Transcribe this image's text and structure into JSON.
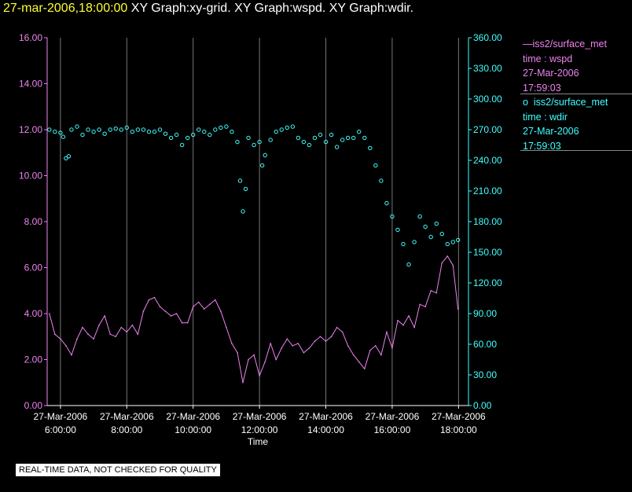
{
  "header": {
    "time_label": "27-mar-2006,18:00:00",
    "title_rest": "XY Graph:xy-grid.  XY Graph:wspd.  XY Graph:wdir."
  },
  "legend": {
    "wspd": {
      "marker": "—",
      "source": "iss2/surface_met",
      "var": "time : wspd",
      "date": "27-Mar-2006",
      "time": "17:59:03"
    },
    "wdir": {
      "marker": "o",
      "source": "iss2/surface_met",
      "var": "time : wdir",
      "date": "27-Mar-2006",
      "time": "17:59:03"
    }
  },
  "footer": {
    "disclaimer": "REAL-TIME DATA, NOT CHECKED FOR QUALITY"
  },
  "chart_data": {
    "type": "line",
    "xlabel": "Time",
    "x_range_hours": [
      5.6,
      18.3
    ],
    "x_ticks": [
      {
        "date": "27-Mar-2006",
        "time": "6:00:00",
        "hour": 6
      },
      {
        "date": "27-Mar-2006",
        "time": "8:00:00",
        "hour": 8
      },
      {
        "date": "27-Mar-2006",
        "time": "10:00:00",
        "hour": 10
      },
      {
        "date": "27-Mar-2006",
        "time": "12:00:00",
        "hour": 12
      },
      {
        "date": "27-Mar-2006",
        "time": "14:00:00",
        "hour": 14
      },
      {
        "date": "27-Mar-2006",
        "time": "16:00:00",
        "hour": 16
      },
      {
        "date": "27-Mar-2006",
        "time": "18:00:00",
        "hour": 18
      }
    ],
    "left_axis": {
      "ylim": [
        0,
        16
      ],
      "ticks": [
        "0.00",
        "2.00",
        "4.00",
        "6.00",
        "8.00",
        "10.00",
        "12.00",
        "14.00",
        "16.00"
      ]
    },
    "right_axis": {
      "ylim": [
        0,
        360
      ],
      "ticks": [
        "0.00",
        "30.00",
        "60.00",
        "90.00",
        "120.00",
        "150.00",
        "180.00",
        "210.00",
        "240.00",
        "270.00",
        "300.00",
        "330.00",
        "360.00"
      ]
    },
    "series": [
      {
        "name": "iss2/surface_met time : wspd",
        "style": "line",
        "axis": "left",
        "color": "#ee82ee",
        "points": [
          [
            "5:40",
            4.0
          ],
          [
            "5:50",
            3.1
          ],
          [
            "6:00",
            2.9
          ],
          [
            "6:10",
            2.6
          ],
          [
            "6:20",
            2.2
          ],
          [
            "6:30",
            2.9
          ],
          [
            "6:40",
            3.4
          ],
          [
            "6:50",
            3.1
          ],
          [
            "7:00",
            2.9
          ],
          [
            "7:10",
            3.5
          ],
          [
            "7:20",
            3.9
          ],
          [
            "7:30",
            3.1
          ],
          [
            "7:40",
            3.0
          ],
          [
            "7:50",
            3.4
          ],
          [
            "8:00",
            3.2
          ],
          [
            "8:10",
            3.5
          ],
          [
            "8:20",
            3.1
          ],
          [
            "8:30",
            4.1
          ],
          [
            "8:40",
            4.6
          ],
          [
            "8:50",
            4.7
          ],
          [
            "9:00",
            4.3
          ],
          [
            "9:10",
            4.1
          ],
          [
            "9:20",
            3.9
          ],
          [
            "9:30",
            4.0
          ],
          [
            "9:40",
            3.6
          ],
          [
            "9:50",
            3.6
          ],
          [
            "10:00",
            4.3
          ],
          [
            "10:10",
            4.5
          ],
          [
            "10:20",
            4.2
          ],
          [
            "10:30",
            4.4
          ],
          [
            "10:40",
            4.6
          ],
          [
            "10:50",
            4.1
          ],
          [
            "11:00",
            3.4
          ],
          [
            "11:10",
            2.7
          ],
          [
            "11:20",
            2.3
          ],
          [
            "11:30",
            1.0
          ],
          [
            "11:40",
            2.0
          ],
          [
            "11:50",
            2.2
          ],
          [
            "12:00",
            1.3
          ],
          [
            "12:10",
            1.9
          ],
          [
            "12:20",
            2.7
          ],
          [
            "12:30",
            2.0
          ],
          [
            "12:40",
            2.5
          ],
          [
            "12:50",
            2.9
          ],
          [
            "13:00",
            2.6
          ],
          [
            "13:10",
            2.7
          ],
          [
            "13:20",
            2.3
          ],
          [
            "13:30",
            2.5
          ],
          [
            "13:40",
            2.8
          ],
          [
            "13:50",
            3.0
          ],
          [
            "14:00",
            2.8
          ],
          [
            "14:10",
            3.0
          ],
          [
            "14:20",
            3.4
          ],
          [
            "14:30",
            3.2
          ],
          [
            "14:40",
            2.6
          ],
          [
            "14:50",
            2.2
          ],
          [
            "15:00",
            1.9
          ],
          [
            "15:10",
            1.6
          ],
          [
            "15:20",
            2.4
          ],
          [
            "15:30",
            2.6
          ],
          [
            "15:40",
            2.2
          ],
          [
            "15:50",
            3.2
          ],
          [
            "16:00",
            2.5
          ],
          [
            "16:10",
            3.7
          ],
          [
            "16:20",
            3.5
          ],
          [
            "16:30",
            3.9
          ],
          [
            "16:40",
            3.4
          ],
          [
            "16:50",
            4.4
          ],
          [
            "17:00",
            4.3
          ],
          [
            "17:10",
            5.0
          ],
          [
            "17:20",
            4.9
          ],
          [
            "17:30",
            6.2
          ],
          [
            "17:40",
            6.5
          ],
          [
            "17:50",
            6.1
          ],
          [
            "17:59",
            4.2
          ]
        ]
      },
      {
        "name": "iss2/surface_met time : wdir",
        "style": "points",
        "axis": "right",
        "color": "#40ffff",
        "points": [
          [
            "5:40",
            270
          ],
          [
            "5:50",
            268
          ],
          [
            "6:00",
            267
          ],
          [
            "6:05",
            263
          ],
          [
            "6:10",
            242
          ],
          [
            "6:15",
            244
          ],
          [
            "6:20",
            270
          ],
          [
            "6:30",
            273
          ],
          [
            "6:40",
            265
          ],
          [
            "6:50",
            270
          ],
          [
            "7:00",
            268
          ],
          [
            "7:10",
            270
          ],
          [
            "7:20",
            266
          ],
          [
            "7:30",
            270
          ],
          [
            "7:40",
            271
          ],
          [
            "7:50",
            270
          ],
          [
            "8:00",
            272
          ],
          [
            "8:10",
            268
          ],
          [
            "8:20",
            270
          ],
          [
            "8:30",
            270
          ],
          [
            "8:40",
            268
          ],
          [
            "8:50",
            268
          ],
          [
            "9:00",
            270
          ],
          [
            "9:10",
            266
          ],
          [
            "9:20",
            262
          ],
          [
            "9:30",
            265
          ],
          [
            "9:40",
            255
          ],
          [
            "9:50",
            262
          ],
          [
            "10:00",
            265
          ],
          [
            "10:10",
            270
          ],
          [
            "10:20",
            268
          ],
          [
            "10:30",
            265
          ],
          [
            "10:40",
            270
          ],
          [
            "10:50",
            272
          ],
          [
            "11:00",
            273
          ],
          [
            "11:10",
            268
          ],
          [
            "11:20",
            258
          ],
          [
            "11:25",
            220
          ],
          [
            "11:30",
            190
          ],
          [
            "11:35",
            212
          ],
          [
            "11:40",
            262
          ],
          [
            "11:50",
            255
          ],
          [
            "12:00",
            258
          ],
          [
            "12:05",
            235
          ],
          [
            "12:10",
            245
          ],
          [
            "12:20",
            260
          ],
          [
            "12:30",
            268
          ],
          [
            "12:40",
            270
          ],
          [
            "12:50",
            272
          ],
          [
            "13:00",
            273
          ],
          [
            "13:10",
            262
          ],
          [
            "13:20",
            258
          ],
          [
            "13:30",
            255
          ],
          [
            "13:40",
            262
          ],
          [
            "13:50",
            265
          ],
          [
            "14:00",
            258
          ],
          [
            "14:10",
            265
          ],
          [
            "14:20",
            253
          ],
          [
            "14:30",
            260
          ],
          [
            "14:40",
            262
          ],
          [
            "14:50",
            262
          ],
          [
            "15:00",
            268
          ],
          [
            "15:10",
            262
          ],
          [
            "15:20",
            252
          ],
          [
            "15:30",
            235
          ],
          [
            "15:40",
            220
          ],
          [
            "15:50",
            198
          ],
          [
            "16:00",
            185
          ],
          [
            "16:10",
            172
          ],
          [
            "16:20",
            158
          ],
          [
            "16:30",
            138
          ],
          [
            "16:40",
            160
          ],
          [
            "16:50",
            185
          ],
          [
            "17:00",
            175
          ],
          [
            "17:10",
            165
          ],
          [
            "17:20",
            178
          ],
          [
            "17:30",
            168
          ],
          [
            "17:40",
            158
          ],
          [
            "17:50",
            160
          ],
          [
            "17:59",
            162
          ]
        ]
      }
    ]
  }
}
